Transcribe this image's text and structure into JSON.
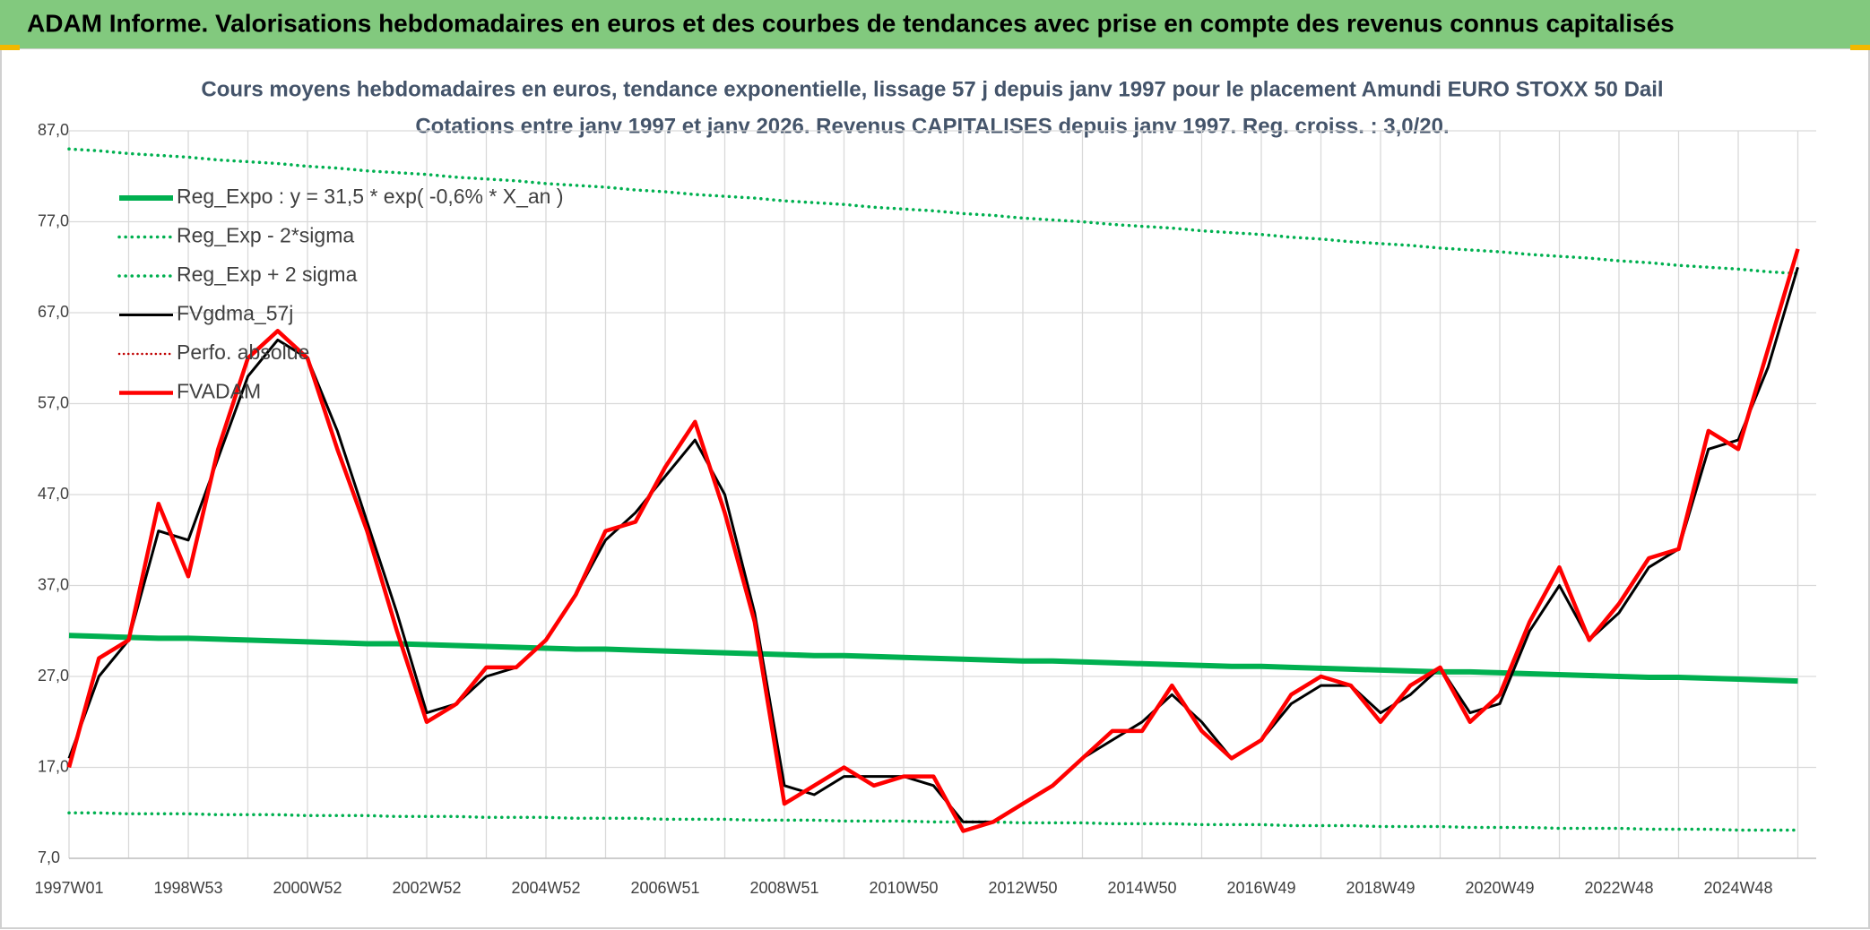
{
  "header": {
    "title": "ADAM Informe. Valorisations hebdomadaires en euros et des courbes de tendances avec prise en compte des revenus connus capitalisés"
  },
  "chart_data": {
    "type": "line",
    "title": "Cours moyens hebdomadaires en euros, tendance exponentielle, lissage 57 j depuis janv 1997 pour le placement Amundi EURO STOXX 50 Dail",
    "subtitle": "Cotations entre janv 1997 et janv 2026. Revenus CAPITALISES depuis janv 1997. Reg. croiss. : 3,0/20.",
    "categories": [
      "1997W01",
      null,
      null,
      null,
      "1998W53",
      null,
      null,
      null,
      "2000W52",
      null,
      null,
      null,
      "2002W52",
      null,
      null,
      null,
      "2004W52",
      null,
      null,
      null,
      "2006W51",
      null,
      null,
      null,
      "2008W51",
      null,
      null,
      null,
      "2010W50",
      null,
      null,
      null,
      "2012W50",
      null,
      null,
      null,
      "2014W50",
      null,
      null,
      null,
      "2016W49",
      null,
      null,
      null,
      "2018W49",
      null,
      null,
      null,
      "2020W49",
      null,
      null,
      null,
      "2022W48",
      null,
      null,
      null,
      "2024W48",
      null,
      null
    ],
    "ylim": [
      7,
      87
    ],
    "yticks": [
      {
        "value": 7,
        "label": "7,0"
      },
      {
        "value": 17,
        "label": "17,0"
      },
      {
        "value": 27,
        "label": "27,0"
      },
      {
        "value": 37,
        "label": "37,0"
      },
      {
        "value": 47,
        "label": "47,0"
      },
      {
        "value": 57,
        "label": "57,0"
      },
      {
        "value": 67,
        "label": "67,0"
      },
      {
        "value": 77,
        "label": "77,0"
      },
      {
        "value": 87,
        "label": "87,0"
      }
    ],
    "grid": true,
    "legend": "top-left",
    "series": [
      {
        "name": "Reg_Expo : y = 31,5 * exp( -0,6% *  X_an )",
        "color": "#00b050",
        "dotted": false,
        "width": 6,
        "values": [
          31.5,
          31.4,
          31.3,
          31.2,
          31.2,
          31.1,
          31.0,
          30.9,
          30.8,
          30.7,
          30.6,
          30.6,
          30.5,
          30.4,
          30.3,
          30.2,
          30.1,
          30.0,
          30.0,
          29.9,
          29.8,
          29.7,
          29.6,
          29.5,
          29.4,
          29.3,
          29.3,
          29.2,
          29.1,
          29.0,
          28.9,
          28.8,
          28.7,
          28.7,
          28.6,
          28.5,
          28.4,
          28.3,
          28.2,
          28.1,
          28.1,
          28.0,
          27.9,
          27.8,
          27.7,
          27.6,
          27.5,
          27.5,
          27.4,
          27.3,
          27.2,
          27.1,
          27.0,
          26.9,
          26.9,
          26.8,
          26.7,
          26.6,
          26.5
        ]
      },
      {
        "name": "Reg_Exp - 2*sigma",
        "color": "#00b050",
        "dotted": true,
        "width": 3.5,
        "values": [
          12.0,
          12.0,
          11.9,
          11.9,
          11.9,
          11.8,
          11.8,
          11.8,
          11.7,
          11.7,
          11.7,
          11.6,
          11.6,
          11.6,
          11.5,
          11.5,
          11.5,
          11.4,
          11.4,
          11.4,
          11.3,
          11.3,
          11.3,
          11.2,
          11.2,
          11.2,
          11.1,
          11.1,
          11.1,
          11.0,
          11.0,
          11.0,
          10.9,
          10.9,
          10.9,
          10.8,
          10.8,
          10.8,
          10.7,
          10.7,
          10.7,
          10.6,
          10.6,
          10.6,
          10.5,
          10.5,
          10.5,
          10.4,
          10.4,
          10.4,
          10.3,
          10.3,
          10.3,
          10.2,
          10.2,
          10.2,
          10.1,
          10.1,
          10.1
        ]
      },
      {
        "name": "Reg_Exp + 2 sigma",
        "color": "#00b050",
        "dotted": true,
        "width": 3.5,
        "values": [
          85.0,
          84.8,
          84.5,
          84.3,
          84.1,
          83.8,
          83.6,
          83.4,
          83.1,
          82.9,
          82.6,
          82.4,
          82.2,
          81.9,
          81.7,
          81.5,
          81.2,
          81.0,
          80.8,
          80.5,
          80.3,
          80.0,
          79.8,
          79.6,
          79.3,
          79.1,
          78.9,
          78.6,
          78.4,
          78.2,
          77.9,
          77.7,
          77.4,
          77.2,
          77.0,
          76.7,
          76.5,
          76.3,
          76.0,
          75.8,
          75.6,
          75.3,
          75.1,
          74.8,
          74.6,
          74.4,
          74.1,
          73.9,
          73.7,
          73.4,
          73.2,
          73.0,
          72.7,
          72.5,
          72.2,
          72.0,
          71.8,
          71.5,
          71.3
        ]
      },
      {
        "name": "FVgdma_57j",
        "color": "#000000",
        "dotted": false,
        "width": 3,
        "values": [
          18,
          27,
          31,
          43,
          42,
          51,
          60,
          64,
          62,
          54,
          44,
          34,
          23,
          24,
          27,
          28,
          31,
          36,
          42,
          45,
          49,
          53,
          47,
          34,
          15,
          14,
          16,
          16,
          16,
          15,
          11,
          11,
          13,
          15,
          18,
          20,
          22,
          25,
          22,
          18,
          20,
          24,
          26,
          26,
          23,
          25,
          28,
          23,
          24,
          32,
          37,
          31,
          34,
          39,
          41,
          52,
          53,
          61,
          72
        ]
      },
      {
        "name": "Perfo. absolue",
        "color": "#c00000",
        "dotted": true,
        "width": 2.5
      },
      {
        "name": "FVADAM",
        "color": "#ff0000",
        "dotted": false,
        "width": 4.5,
        "values": [
          17,
          29,
          31,
          46,
          38,
          52,
          62,
          65,
          62,
          52,
          43,
          32,
          22,
          24,
          28,
          28,
          31,
          36,
          43,
          44,
          50,
          55,
          45,
          33,
          13,
          15,
          17,
          15,
          16,
          16,
          10,
          11,
          13,
          15,
          18,
          21,
          21,
          26,
          21,
          18,
          20,
          25,
          27,
          26,
          22,
          26,
          28,
          22,
          25,
          33,
          39,
          31,
          35,
          40,
          41,
          54,
          52,
          63,
          74
        ]
      }
    ]
  }
}
